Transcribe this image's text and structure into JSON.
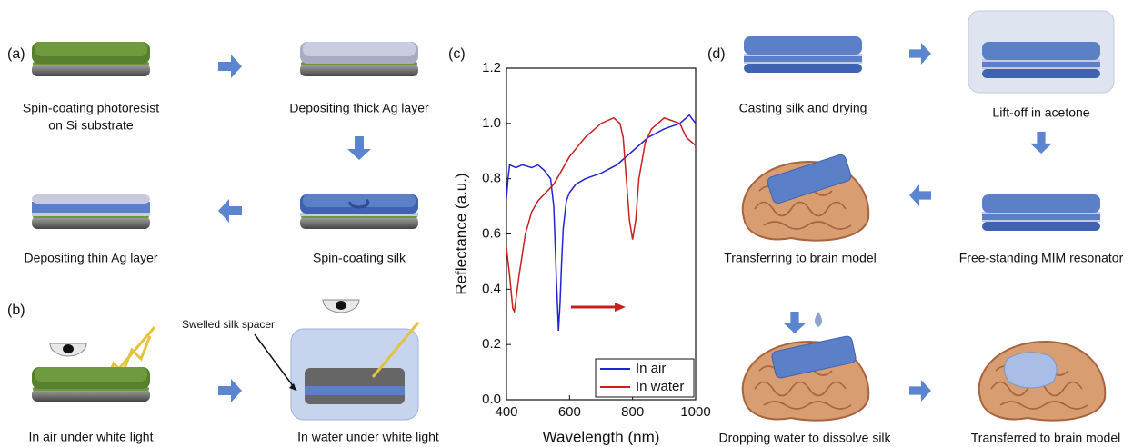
{
  "panels": {
    "a": {
      "label": "(a)",
      "steps": [
        "Spin-coating photoresist",
        "on Si substrate",
        "Depositing thick Ag layer",
        "Spin-coating silk",
        "Depositing thin Ag layer"
      ]
    },
    "b": {
      "label": "(b)",
      "steps": [
        "In air under white light",
        "In water under white light"
      ],
      "annotation": "Swelled silk spacer"
    },
    "d": {
      "label": "(d)",
      "steps": [
        "Casting silk and drying",
        "Lift-off in acetone",
        "Free-standing MIM resonator",
        "Transferring to brain model",
        "Dropping water to dissolve silk",
        "Transferred to brain model"
      ]
    }
  },
  "chart_data": {
    "type": "line",
    "panel_label": "(c)",
    "xlabel": "Wavelength (nm)",
    "ylabel": "Reflectance (a.u.)",
    "xlim": [
      400,
      1000
    ],
    "xticks": [
      400,
      600,
      800,
      1000
    ],
    "ylim": [
      0,
      1.2
    ],
    "yticks": [
      {
        "value": 0,
        "label": "0.0"
      },
      0.2,
      0.4,
      0.6,
      0.8,
      {
        "value": 1,
        "label": "1.0"
      },
      1.2
    ],
    "legend": "lower right",
    "series": [
      {
        "name": "In air",
        "color": "#2323d6",
        "x": [
          400,
          405,
          410,
          430,
          450,
          480,
          500,
          520,
          540,
          550,
          558,
          565,
          570,
          575,
          580,
          590,
          600,
          620,
          650,
          700,
          750,
          800,
          850,
          900,
          950,
          980,
          1000
        ],
        "values": [
          0.73,
          0.8,
          0.85,
          0.84,
          0.85,
          0.84,
          0.85,
          0.83,
          0.8,
          0.7,
          0.45,
          0.25,
          0.35,
          0.5,
          0.62,
          0.72,
          0.75,
          0.78,
          0.8,
          0.82,
          0.85,
          0.9,
          0.95,
          0.98,
          1.0,
          1.03,
          1.0
        ]
      },
      {
        "name": "In water",
        "color": "#c8201f",
        "x": [
          400,
          410,
          420,
          425,
          440,
          460,
          480,
          500,
          550,
          600,
          650,
          700,
          740,
          760,
          770,
          780,
          790,
          800,
          810,
          820,
          840,
          860,
          900,
          950,
          970,
          1000
        ],
        "values": [
          0.55,
          0.45,
          0.33,
          0.32,
          0.45,
          0.6,
          0.68,
          0.72,
          0.78,
          0.88,
          0.95,
          1.0,
          1.02,
          1.0,
          0.95,
          0.8,
          0.65,
          0.58,
          0.65,
          0.8,
          0.93,
          0.98,
          1.02,
          1.0,
          0.95,
          0.92
        ]
      }
    ]
  }
}
